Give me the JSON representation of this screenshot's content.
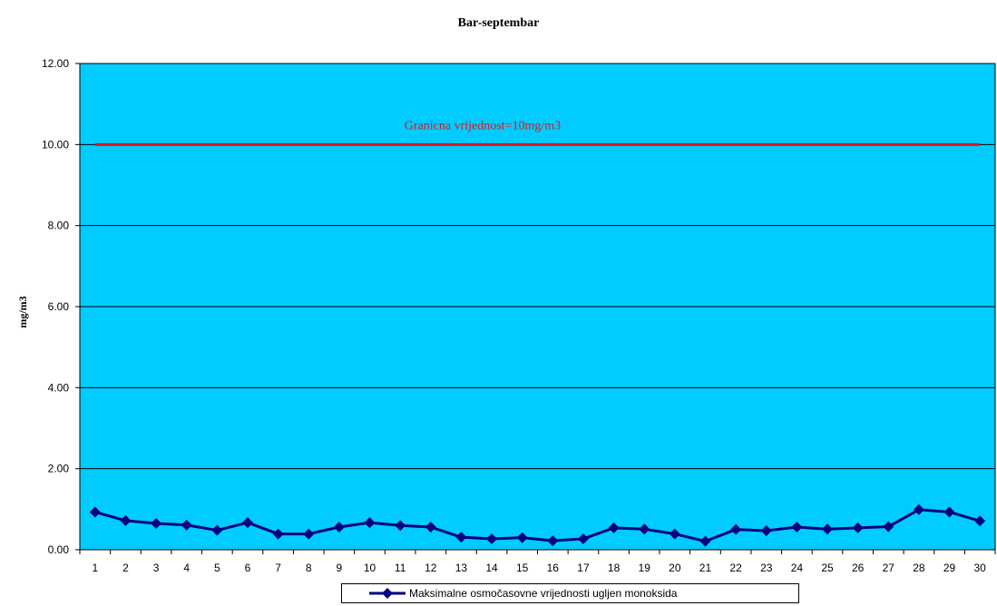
{
  "chart_data": {
    "type": "line",
    "title": "Bar-septembar",
    "xlabel": "",
    "ylabel": "mg/m3",
    "ylim": [
      0,
      12
    ],
    "yticks": [
      "0.00",
      "2.00",
      "4.00",
      "6.00",
      "8.00",
      "10.00",
      "12.00"
    ],
    "categories": [
      "1",
      "2",
      "3",
      "4",
      "5",
      "6",
      "7",
      "8",
      "9",
      "10",
      "11",
      "12",
      "13",
      "14",
      "15",
      "16",
      "17",
      "18",
      "19",
      "20",
      "21",
      "22",
      "23",
      "24",
      "25",
      "26",
      "27",
      "28",
      "29",
      "30"
    ],
    "series": [
      {
        "name": "Maksimalne osmočasovne vrijednosti ugljen monoksida",
        "color": "#000080",
        "marker": "diamond",
        "values": [
          0.93,
          0.72,
          0.65,
          0.61,
          0.48,
          0.67,
          0.39,
          0.39,
          0.56,
          0.67,
          0.6,
          0.56,
          0.31,
          0.27,
          0.3,
          0.22,
          0.27,
          0.54,
          0.51,
          0.39,
          0.21,
          0.5,
          0.47,
          0.56,
          0.51,
          0.54,
          0.57,
          0.99,
          0.93,
          0.71
        ]
      }
    ],
    "reference_line": {
      "value": 10,
      "label": "Granicna vrijednost=10mg/m3",
      "color": "#e8131c"
    },
    "plot_background": "#00ccff",
    "grid": true,
    "legend_position": "bottom"
  }
}
